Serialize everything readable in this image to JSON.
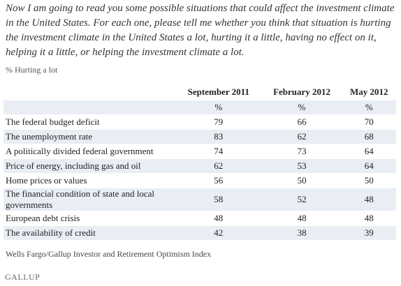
{
  "question": "Now I am going to read you some possible situations that could affect the investment climate in the United States. For each one, please tell me whether you think that situation is hurting the investment climate in the United States a lot, hurting it a little, having no effect on it, helping it a little, or helping the investment climate a lot.",
  "subtitle": "% Hurting a lot",
  "table": {
    "columns": [
      "September 2011",
      "February 2012",
      "May 2012"
    ],
    "units": [
      "%",
      "%",
      "%"
    ],
    "rows": [
      {
        "label": "The federal budget deficit",
        "values": [
          79,
          66,
          70
        ]
      },
      {
        "label": "The unemployment rate",
        "values": [
          83,
          62,
          68
        ]
      },
      {
        "label": "A politically divided federal government",
        "values": [
          74,
          73,
          64
        ]
      },
      {
        "label": "Price of energy, including gas and oil",
        "values": [
          62,
          53,
          64
        ]
      },
      {
        "label": "Home prices or values",
        "values": [
          56,
          50,
          50
        ]
      },
      {
        "label": "The financial condition of state and local governments",
        "values": [
          58,
          52,
          48
        ]
      },
      {
        "label": "European debt crisis",
        "values": [
          48,
          48,
          48
        ]
      },
      {
        "label": "The availability of credit",
        "values": [
          42,
          38,
          39
        ]
      }
    ]
  },
  "source": "Wells Fargo/Gallup Investor and Retirement Optimism Index",
  "brand": "GALLUP"
}
